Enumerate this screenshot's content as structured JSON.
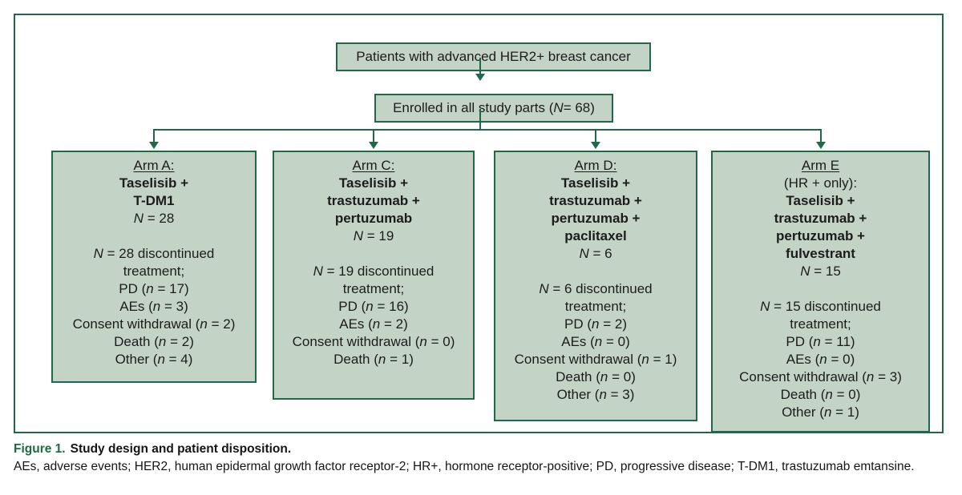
{
  "figure": {
    "patients_box": [
      {
        "t": "Patients with advanced HER2+ breast cancer"
      }
    ],
    "enrolled_box": [
      {
        "t": "Enrolled in all study parts ("
      },
      {
        "t": "N",
        "i": true
      },
      {
        "t": " = 68)"
      }
    ],
    "enrolled_total": 68
  },
  "arms": [
    {
      "key": "a",
      "lines": [
        {
          "u": true,
          "segs": [
            {
              "t": "Arm A:"
            }
          ]
        },
        {
          "b": true,
          "segs": [
            {
              "t": "Taselisib +"
            }
          ]
        },
        {
          "b": true,
          "segs": [
            {
              "t": "T-DM1"
            }
          ]
        },
        {
          "segs": [
            {
              "t": "N",
              "i": true
            },
            {
              "t": " = 28"
            }
          ]
        },
        {
          "blank": true
        },
        {
          "segs": [
            {
              "t": "N",
              "i": true
            },
            {
              "t": " = 28 discontinued"
            }
          ]
        },
        {
          "segs": [
            {
              "t": "treatment;"
            }
          ]
        },
        {
          "segs": [
            {
              "t": "PD ("
            },
            {
              "t": "n",
              "i": true
            },
            {
              "t": " = 17)"
            }
          ]
        },
        {
          "segs": [
            {
              "t": "AEs ("
            },
            {
              "t": "n",
              "i": true
            },
            {
              "t": " = 3)"
            }
          ]
        },
        {
          "segs": [
            {
              "t": "Consent withdrawal ("
            },
            {
              "t": "n",
              "i": true
            },
            {
              "t": " = 2)"
            }
          ]
        },
        {
          "segs": [
            {
              "t": "Death ("
            },
            {
              "t": "n",
              "i": true
            },
            {
              "t": " = 2)"
            }
          ]
        },
        {
          "segs": [
            {
              "t": "Other ("
            },
            {
              "t": "n",
              "i": true
            },
            {
              "t": " = 4)"
            }
          ]
        }
      ]
    },
    {
      "key": "c",
      "lines": [
        {
          "u": true,
          "segs": [
            {
              "t": "Arm C:"
            }
          ]
        },
        {
          "b": true,
          "segs": [
            {
              "t": "Taselisib +"
            }
          ]
        },
        {
          "b": true,
          "segs": [
            {
              "t": "trastuzumab +"
            }
          ]
        },
        {
          "b": true,
          "segs": [
            {
              "t": "pertuzumab"
            }
          ]
        },
        {
          "segs": [
            {
              "t": "N",
              "i": true
            },
            {
              "t": " = 19"
            }
          ]
        },
        {
          "blank": true
        },
        {
          "segs": [
            {
              "t": "N",
              "i": true
            },
            {
              "t": " = 19 discontinued"
            }
          ]
        },
        {
          "segs": [
            {
              "t": "treatment;"
            }
          ]
        },
        {
          "segs": [
            {
              "t": "PD ("
            },
            {
              "t": "n",
              "i": true
            },
            {
              "t": " = 16)"
            }
          ]
        },
        {
          "segs": [
            {
              "t": "AEs ("
            },
            {
              "t": "n",
              "i": true
            },
            {
              "t": " = 2)"
            }
          ]
        },
        {
          "segs": [
            {
              "t": "Consent withdrawal ("
            },
            {
              "t": "n",
              "i": true
            },
            {
              "t": " = 0)"
            }
          ]
        },
        {
          "segs": [
            {
              "t": "Death ("
            },
            {
              "t": "n",
              "i": true
            },
            {
              "t": " = 1)"
            }
          ]
        }
      ]
    },
    {
      "key": "d",
      "lines": [
        {
          "u": true,
          "segs": [
            {
              "t": "Arm D:"
            }
          ]
        },
        {
          "b": true,
          "segs": [
            {
              "t": "Taselisib +"
            }
          ]
        },
        {
          "b": true,
          "segs": [
            {
              "t": "trastuzumab +"
            }
          ]
        },
        {
          "b": true,
          "segs": [
            {
              "t": "pertuzumab +"
            }
          ]
        },
        {
          "b": true,
          "segs": [
            {
              "t": "paclitaxel"
            }
          ]
        },
        {
          "segs": [
            {
              "t": "N",
              "i": true
            },
            {
              "t": " = 6"
            }
          ]
        },
        {
          "blank": true
        },
        {
          "segs": [
            {
              "t": "N",
              "i": true
            },
            {
              "t": " = 6 discontinued"
            }
          ]
        },
        {
          "segs": [
            {
              "t": "treatment;"
            }
          ]
        },
        {
          "segs": [
            {
              "t": "PD ("
            },
            {
              "t": "n",
              "i": true
            },
            {
              "t": " = 2)"
            }
          ]
        },
        {
          "segs": [
            {
              "t": "AEs ("
            },
            {
              "t": "n",
              "i": true
            },
            {
              "t": " = 0)"
            }
          ]
        },
        {
          "segs": [
            {
              "t": "Consent withdrawal ("
            },
            {
              "t": "n",
              "i": true
            },
            {
              "t": " = 1)"
            }
          ]
        },
        {
          "segs": [
            {
              "t": "Death ("
            },
            {
              "t": "n",
              "i": true
            },
            {
              "t": " = 0)"
            }
          ]
        },
        {
          "segs": [
            {
              "t": "Other ("
            },
            {
              "t": "n",
              "i": true
            },
            {
              "t": " = 3)"
            }
          ]
        }
      ]
    },
    {
      "key": "e",
      "lines": [
        {
          "u": true,
          "segs": [
            {
              "t": "Arm E"
            }
          ]
        },
        {
          "segs": [
            {
              "t": "(HR + only):"
            }
          ]
        },
        {
          "b": true,
          "segs": [
            {
              "t": "Taselisib +"
            }
          ]
        },
        {
          "b": true,
          "segs": [
            {
              "t": "trastuzumab +"
            }
          ]
        },
        {
          "b": true,
          "segs": [
            {
              "t": "pertuzumab +"
            }
          ]
        },
        {
          "b": true,
          "segs": [
            {
              "t": "fulvestrant"
            }
          ]
        },
        {
          "segs": [
            {
              "t": "N",
              "i": true
            },
            {
              "t": " = 15"
            }
          ]
        },
        {
          "blank": true
        },
        {
          "segs": [
            {
              "t": "N",
              "i": true
            },
            {
              "t": " = 15 discontinued"
            }
          ]
        },
        {
          "segs": [
            {
              "t": "treatment;"
            }
          ]
        },
        {
          "segs": [
            {
              "t": "PD ("
            },
            {
              "t": "n",
              "i": true
            },
            {
              "t": " = 11)"
            }
          ]
        },
        {
          "segs": [
            {
              "t": "AEs ("
            },
            {
              "t": "n",
              "i": true
            },
            {
              "t": " = 0)"
            }
          ]
        },
        {
          "segs": [
            {
              "t": "Consent withdrawal ("
            },
            {
              "t": "n",
              "i": true
            },
            {
              "t": " = 3)"
            }
          ]
        },
        {
          "segs": [
            {
              "t": "Death ("
            },
            {
              "t": "n",
              "i": true
            },
            {
              "t": " = 0)"
            }
          ]
        },
        {
          "segs": [
            {
              "t": "Other ("
            },
            {
              "t": "n",
              "i": true
            },
            {
              "t": " = 1)"
            }
          ]
        }
      ]
    }
  ],
  "disposition": {
    "arm_a": {
      "N": 28,
      "discontinued": 28,
      "PD": 17,
      "AEs": 3,
      "consent_withdrawal": 2,
      "death": 2,
      "other": 4
    },
    "arm_c": {
      "N": 19,
      "discontinued": 19,
      "PD": 16,
      "AEs": 2,
      "consent_withdrawal": 0,
      "death": 1
    },
    "arm_d": {
      "N": 6,
      "discontinued": 6,
      "PD": 2,
      "AEs": 0,
      "consent_withdrawal": 1,
      "death": 0,
      "other": 3
    },
    "arm_e": {
      "N": 15,
      "discontinued": 15,
      "PD": 11,
      "AEs": 0,
      "consent_withdrawal": 3,
      "death": 0,
      "other": 1
    }
  },
  "caption": {
    "label": "Figure 1.",
    "title": "Study design and patient disposition.",
    "footnote": "AEs, adverse events; HER2, human epidermal growth factor receptor-2; HR+, hormone receptor-positive; PD, progressive disease; T-DM1, trastuzumab emtansine."
  },
  "colors": {
    "box_fill": "#c3d4c6",
    "box_border": "#1f6848",
    "line_green": "#1f6848",
    "caption_green": "#1d6b45",
    "text": "#1c1c1c"
  }
}
